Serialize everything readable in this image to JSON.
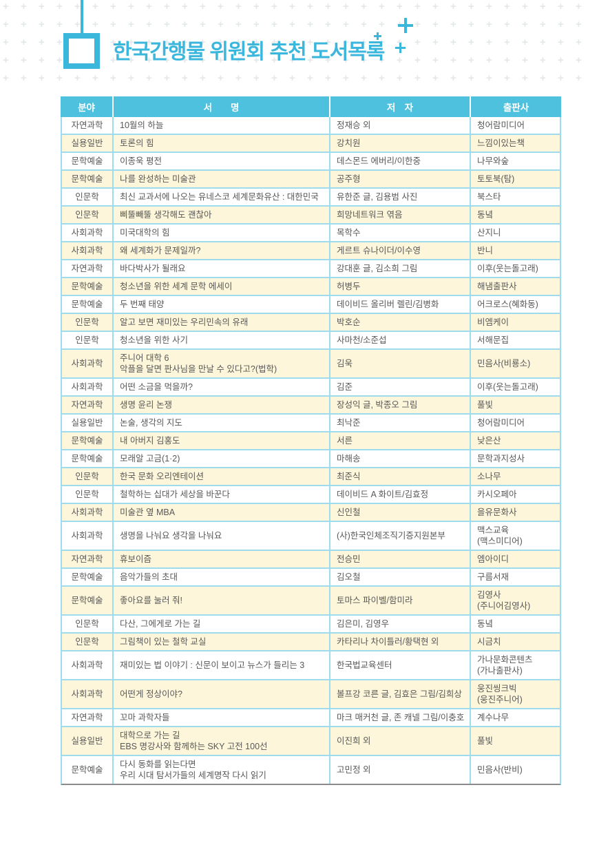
{
  "title": "한국간행물 위원회 추천 도서목록",
  "colors": {
    "brand_cyan": "#3cb7dc",
    "header_bg": "#4ec1de",
    "row_alt_bg": "#fdf6da",
    "table_border": "#9ddcee",
    "body_text": "#585858"
  },
  "table": {
    "headers": [
      "분야",
      "서　　명",
      "저　자",
      "출판사"
    ],
    "rows": [
      {
        "field": "자연과학",
        "title": "10월의 하늘",
        "author": "정재승 외",
        "publisher": "청어람미디어"
      },
      {
        "field": "실용일반",
        "title": "토론의 힘",
        "author": "강치원",
        "publisher": "느낌이있는책"
      },
      {
        "field": "문학예술",
        "title": "이종욱 평전",
        "author": "데스몬드 에버리/이한중",
        "publisher": "나무와숲"
      },
      {
        "field": "문학예술",
        "title": "나를 완성하는 미술관",
        "author": "공주형",
        "publisher": "토토북(탐)"
      },
      {
        "field": "인문학",
        "title": "최신 교과서에 나오는 유네스코 세계문화유산 : 대한민국",
        "author": "유한준 글, 김용범 사진",
        "publisher": "북스타"
      },
      {
        "field": "인문학",
        "title": "삐뚤빼뚤 생각해도 괜찮아",
        "author": "희망네트워크 엮음",
        "publisher": "동녘"
      },
      {
        "field": "사회과학",
        "title": "미국대학의 힘",
        "author": "목학수",
        "publisher": "산지니"
      },
      {
        "field": "사회과학",
        "title": "왜 세계화가 문제일까?",
        "author": "게르트 슈나이더/이수영",
        "publisher": "반니"
      },
      {
        "field": "자연과학",
        "title": "바다박사가 될래요",
        "author": "강대훈 글, 김소희 그림",
        "publisher": "이후(웃는돌고래)"
      },
      {
        "field": "문학예술",
        "title": "청소년을 위한 세계 문학 에세이",
        "author": "허병두",
        "publisher": "해냄출판사"
      },
      {
        "field": "문학예술",
        "title": "두 번째 태양",
        "author": "데이비드 올리버 렐린/김병화",
        "publisher": "어크로스(혜화동)"
      },
      {
        "field": "인문학",
        "title": "알고 보면 재미있는 우리민속의 유래",
        "author": "박호순",
        "publisher": "비엠케이"
      },
      {
        "field": "인문학",
        "title": "청소년을 위한 사기",
        "author": "사마천/소준섭",
        "publisher": "서해문집"
      },
      {
        "field": "사회과학",
        "title": "주니어 대학 6\n악플을 달면 판사님을 만날 수 있다고?(법학)",
        "author": "김욱",
        "publisher": "민음사(비룡소)"
      },
      {
        "field": "사회과학",
        "title": "어떤 소금을 먹을까?",
        "author": "김준",
        "publisher": "이후(웃는돌고래)"
      },
      {
        "field": "자연과학",
        "title": "생명 윤리 논쟁",
        "author": "장성익 글, 박종오 그림",
        "publisher": "풀빛"
      },
      {
        "field": "실용일반",
        "title": "논술, 생각의 지도",
        "author": "최낙준",
        "publisher": "청어람미디어"
      },
      {
        "field": "문학예술",
        "title": "내 아버지 김홍도",
        "author": "서른",
        "publisher": "낮은산"
      },
      {
        "field": "문학예술",
        "title": "모래알 고금(1·2)",
        "author": "마해송",
        "publisher": "문학과지성사"
      },
      {
        "field": "인문학",
        "title": "한국 문화 오리엔테이션",
        "author": "최준식",
        "publisher": "소나무"
      },
      {
        "field": "인문학",
        "title": "철학하는 십대가 세상을 바꾼다",
        "author": "데이비드 A 화이트/김효정",
        "publisher": "카시오페아"
      },
      {
        "field": "사회과학",
        "title": "미술관 옆 MBA",
        "author": "신인철",
        "publisher": "을유문화사"
      },
      {
        "field": "사회과학",
        "title": "생명을 나눠요 생각을 나눠요",
        "author": "(사)한국인체조직기증지원본부",
        "publisher": "맥스교육\n(맥스미디어)"
      },
      {
        "field": "자연과학",
        "title": "휴보이즘",
        "author": "전승민",
        "publisher": "엠아이디"
      },
      {
        "field": "문학예술",
        "title": "음악가들의 초대",
        "author": "김오철",
        "publisher": "구름서재"
      },
      {
        "field": "문학예술",
        "title": "좋아요를 눌러 줘!",
        "author": "토마스 파이벨/함미라",
        "publisher": "김영사\n(주니어김영사)"
      },
      {
        "field": "인문학",
        "title": "다산, 그에게로 가는 길",
        "author": "김은미, 김영우",
        "publisher": "동녘"
      },
      {
        "field": "인문학",
        "title": "그림책이 있는 철학 교실",
        "author": "카타리나 차이틀러/황택현 외",
        "publisher": "시금치"
      },
      {
        "field": "사회과학",
        "title": "재미있는 법 이야기 : 신문이 보이고 뉴스가 들리는 3",
        "author": "한국법교육센터",
        "publisher": "가나문화콘텐츠\n(가나출판사)"
      },
      {
        "field": "사회과학",
        "title": "어떤게 정상이야?",
        "author": "볼프강 코른 글, 김효은 그림/김희상",
        "publisher": "웅진씽크빅\n(웅진주니어)"
      },
      {
        "field": "자연과학",
        "title": "꼬마 과학자들",
        "author": "마크 매커천 글, 존 캐넬 그림/이충호",
        "publisher": "계수나무"
      },
      {
        "field": "실용일반",
        "title": "대학으로 가는 길\nEBS 명강사와 함께하는 SKY 고전 100선",
        "author": "이진희 외",
        "publisher": "풀빛"
      },
      {
        "field": "문학예술",
        "title": "다시 동화를 읽는다면\n우리 시대 탐서가들의 세계명작 다시 읽기",
        "author": "고민정 외",
        "publisher": "민음사(반비)"
      }
    ]
  }
}
